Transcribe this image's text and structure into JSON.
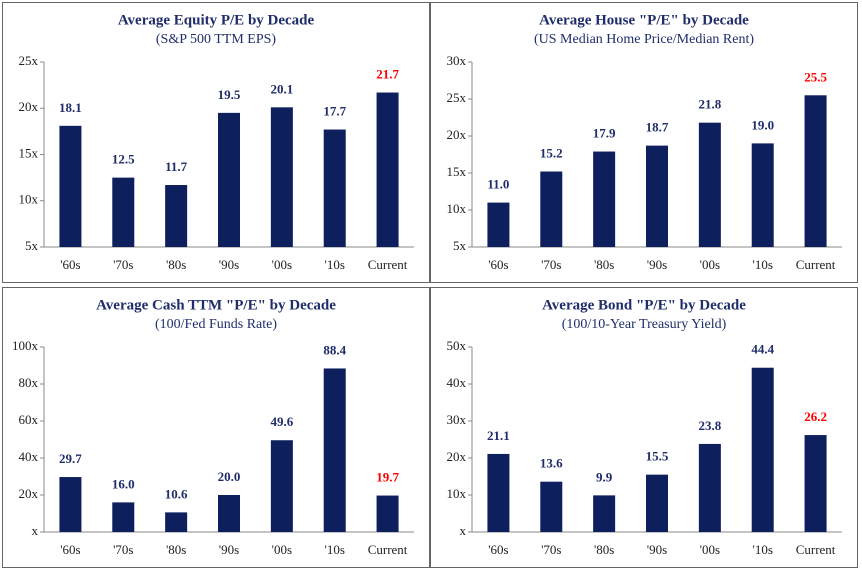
{
  "chart_data": [
    {
      "type": "bar",
      "title": "Average Equity P/E by Decade",
      "subtitle": "(S&P 500 TTM EPS)",
      "categories": [
        "'60s",
        "'70s",
        "'80s",
        "'90s",
        "'00s",
        "'10s",
        "Current"
      ],
      "values": [
        18.1,
        12.5,
        11.7,
        19.5,
        20.1,
        17.7,
        21.7
      ],
      "value_label_colors": [
        "#1f2d6b",
        "#1f2d6b",
        "#1f2d6b",
        "#1f2d6b",
        "#1f2d6b",
        "#1f2d6b",
        "#ff0000"
      ],
      "color": "#0d1f5c",
      "ylim": [
        5,
        25
      ],
      "yticks": [
        {
          "value": 5,
          "label": "5x"
        },
        {
          "value": 10,
          "label": "10x"
        },
        {
          "value": 15,
          "label": "15x"
        },
        {
          "value": 20,
          "label": "20x"
        },
        {
          "value": 25,
          "label": "25x"
        }
      ]
    },
    {
      "type": "bar",
      "title": "Average House \"P/E\" by Decade",
      "subtitle": "(US Median Home Price/Median Rent)",
      "categories": [
        "'60s",
        "'70s",
        "'80s",
        "'90s",
        "'00s",
        "'10s",
        "Current"
      ],
      "values": [
        11.0,
        15.2,
        17.9,
        18.7,
        21.8,
        19.0,
        25.5
      ],
      "value_labels": [
        "11.0",
        "15.2",
        "17.9",
        "18.7",
        "21.8",
        "19.0",
        "25.5"
      ],
      "value_label_colors": [
        "#1f2d6b",
        "#1f2d6b",
        "#1f2d6b",
        "#1f2d6b",
        "#1f2d6b",
        "#1f2d6b",
        "#ff0000"
      ],
      "color": "#0d1f5c",
      "ylim": [
        5,
        30
      ],
      "yticks": [
        {
          "value": 5,
          "label": "5x"
        },
        {
          "value": 10,
          "label": "10x"
        },
        {
          "value": 15,
          "label": "15x"
        },
        {
          "value": 20,
          "label": "20x"
        },
        {
          "value": 25,
          "label": "25x"
        },
        {
          "value": 30,
          "label": "30x"
        }
      ]
    },
    {
      "type": "bar",
      "title": "Average Cash TTM \"P/E\" by Decade",
      "subtitle": "(100/Fed Funds Rate)",
      "categories": [
        "'60s",
        "'70s",
        "'80s",
        "'90s",
        "'00s",
        "'10s",
        "Current"
      ],
      "values": [
        29.7,
        16.0,
        10.6,
        20.0,
        49.6,
        88.4,
        19.7
      ],
      "value_labels": [
        "29.7",
        "16.0",
        "10.6",
        "20.0",
        "49.6",
        "88.4",
        "19.7"
      ],
      "value_label_colors": [
        "#1f2d6b",
        "#1f2d6b",
        "#1f2d6b",
        "#1f2d6b",
        "#1f2d6b",
        "#1f2d6b",
        "#ff0000"
      ],
      "color": "#0d1f5c",
      "ylim": [
        0,
        100
      ],
      "yticks": [
        {
          "value": 0,
          "label": "x"
        },
        {
          "value": 20,
          "label": "20x"
        },
        {
          "value": 40,
          "label": "40x"
        },
        {
          "value": 60,
          "label": "60x"
        },
        {
          "value": 80,
          "label": "80x"
        },
        {
          "value": 100,
          "label": "100x"
        }
      ]
    },
    {
      "type": "bar",
      "title": "Average Bond \"P/E\" by Decade",
      "subtitle": "(100/10-Year Treasury Yield)",
      "categories": [
        "'60s",
        "'70s",
        "'80s",
        "'90s",
        "'00s",
        "'10s",
        "Current"
      ],
      "values": [
        21.1,
        13.6,
        9.9,
        15.5,
        23.8,
        44.4,
        26.2
      ],
      "value_label_colors": [
        "#1f2d6b",
        "#1f2d6b",
        "#1f2d6b",
        "#1f2d6b",
        "#1f2d6b",
        "#1f2d6b",
        "#ff0000"
      ],
      "color": "#0d1f5c",
      "ylim": [
        0,
        50
      ],
      "yticks": [
        {
          "value": 0,
          "label": "x"
        },
        {
          "value": 10,
          "label": "10x"
        },
        {
          "value": 20,
          "label": "20x"
        },
        {
          "value": 30,
          "label": "30x"
        },
        {
          "value": 40,
          "label": "40x"
        },
        {
          "value": 50,
          "label": "50x"
        }
      ]
    }
  ]
}
